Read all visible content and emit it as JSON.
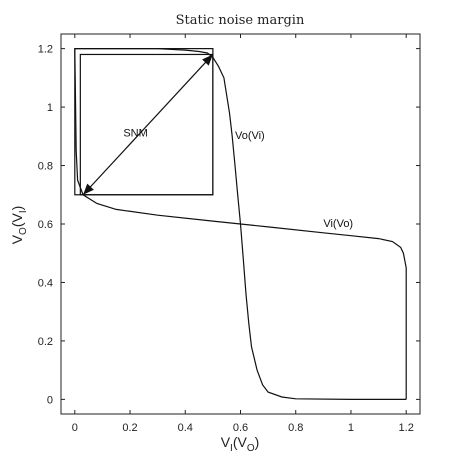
{
  "chart_data": {
    "type": "line",
    "title": "Static noise margin",
    "xlabel": {
      "main": "V",
      "sub1": "I",
      "paren_open": "(V",
      "sub2": "O",
      "paren_close": ")"
    },
    "ylabel": {
      "main": "V",
      "sub1": "O",
      "paren_open": "(V",
      "sub2": "I",
      "paren_close": ")"
    },
    "xlim": [
      -0.05,
      1.25
    ],
    "ylim": [
      -0.05,
      1.25
    ],
    "xticks": [
      0,
      0.2,
      0.4,
      0.6,
      0.8,
      1,
      1.2
    ],
    "yticks": [
      0,
      0.2,
      0.4,
      0.6,
      0.8,
      1,
      1.2
    ],
    "xtick_labels": [
      "0",
      "0.2",
      "0.4",
      "0.6",
      "0.8",
      "1",
      "1.2"
    ],
    "ytick_labels": [
      "0",
      "0.2",
      "0.4",
      "0.6",
      "0.8",
      "1",
      "1.2"
    ],
    "grid": false,
    "series": [
      {
        "name": "Vo(Vi)",
        "x": [
          0,
          0.1,
          0.2,
          0.3,
          0.4,
          0.45,
          0.48,
          0.5,
          0.52,
          0.54,
          0.56,
          0.57,
          0.58,
          0.59,
          0.6,
          0.61,
          0.62,
          0.63,
          0.64,
          0.66,
          0.68,
          0.7,
          0.75,
          0.8,
          1.0,
          1.2
        ],
        "y": [
          1.2,
          1.2,
          1.2,
          1.2,
          1.195,
          1.19,
          1.185,
          1.17,
          1.14,
          1.1,
          0.98,
          0.9,
          0.8,
          0.7,
          0.6,
          0.48,
          0.36,
          0.26,
          0.18,
          0.1,
          0.05,
          0.025,
          0.008,
          0.002,
          0,
          0
        ]
      },
      {
        "name": "Vi(Vo)",
        "x": [
          0,
          0.005,
          0.01,
          0.03,
          0.08,
          0.15,
          0.3,
          0.5,
          0.6,
          0.7,
          0.9,
          1.0,
          1.1,
          1.15,
          1.18,
          1.19,
          1.2,
          1.2,
          1.2
        ],
        "y": [
          1.2,
          0.85,
          0.75,
          0.7,
          0.67,
          0.65,
          0.63,
          0.61,
          0.6,
          0.59,
          0.57,
          0.56,
          0.55,
          0.54,
          0.52,
          0.5,
          0.45,
          0.3,
          0
        ]
      }
    ],
    "snm_box": {
      "x1": 0.02,
      "y1": 0.7,
      "x2": 0.5,
      "y2": 1.18
    },
    "outer_box": {
      "x1": 0,
      "y1": 0.7,
      "x2": 0.5,
      "y2": 1.2
    },
    "snm_arrow": {
      "from": [
        0.03,
        0.7
      ],
      "to": [
        0.5,
        1.18
      ]
    },
    "annotations": [
      {
        "text": "SNM",
        "x": 0.22,
        "y": 0.9
      },
      {
        "text": "Vo(Vi)",
        "x": 0.58,
        "y": 0.89
      },
      {
        "text": "Vi(Vo)",
        "x": 0.9,
        "y": 0.59
      }
    ]
  }
}
